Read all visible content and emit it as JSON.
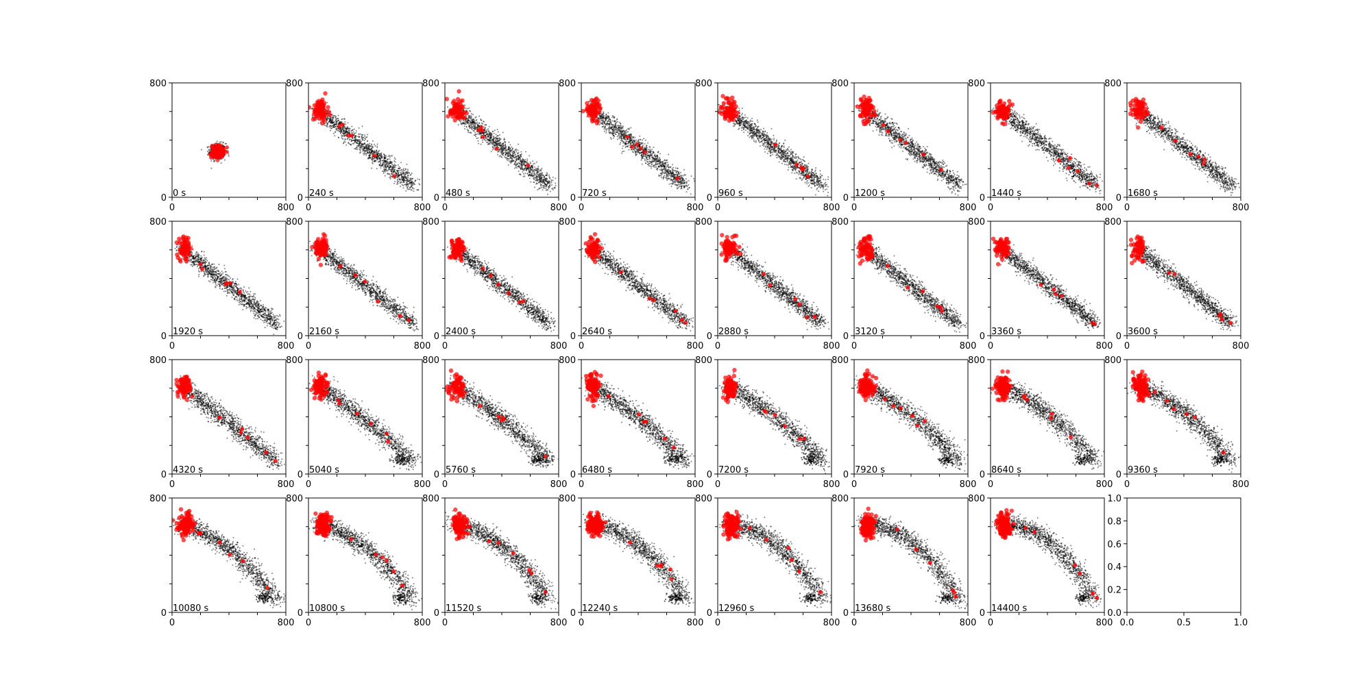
{
  "figure": {
    "background": "#ffffff",
    "rows": 4,
    "cols": 8,
    "point_colors": {
      "bulk": "#000000",
      "highlight": "#ff0000"
    }
  },
  "chart_data": [
    {
      "type": "scatter",
      "time_label": "0 s",
      "phase": 0,
      "xlim": [
        0,
        800
      ],
      "ylim": [
        0,
        800
      ],
      "xticks": [
        "0",
        "800"
      ],
      "yticks": [
        "0",
        "800"
      ],
      "series": [
        {
          "color": "#000000",
          "shape": "cluster",
          "center": [
            320,
            320
          ]
        },
        {
          "color": "#ff0000",
          "shape": "cluster",
          "center": [
            320,
            320
          ]
        }
      ]
    },
    {
      "type": "scatter",
      "time_label": "240 s",
      "phase": 1,
      "xlim": [
        0,
        800
      ],
      "ylim": [
        0,
        800
      ],
      "xticks": [
        "0",
        "800"
      ],
      "yticks": [
        "0",
        "800"
      ]
    },
    {
      "type": "scatter",
      "time_label": "480 s",
      "phase": 1,
      "xlim": [
        0,
        800
      ],
      "ylim": [
        0,
        800
      ],
      "xticks": [
        "0",
        "800"
      ],
      "yticks": [
        "0",
        "800"
      ]
    },
    {
      "type": "scatter",
      "time_label": "720 s",
      "phase": 1,
      "xlim": [
        0,
        800
      ],
      "ylim": [
        0,
        800
      ],
      "xticks": [
        "0",
        "800"
      ],
      "yticks": [
        "0",
        "800"
      ]
    },
    {
      "type": "scatter",
      "time_label": "960 s",
      "phase": 1,
      "xlim": [
        0,
        800
      ],
      "ylim": [
        0,
        800
      ],
      "xticks": [
        "0",
        "800"
      ],
      "yticks": [
        "0",
        "800"
      ]
    },
    {
      "type": "scatter",
      "time_label": "1200 s",
      "phase": 1,
      "xlim": [
        0,
        800
      ],
      "ylim": [
        0,
        800
      ],
      "xticks": [
        "0",
        "800"
      ],
      "yticks": [
        "0",
        "800"
      ]
    },
    {
      "type": "scatter",
      "time_label": "1440 s",
      "phase": 1,
      "xlim": [
        0,
        800
      ],
      "ylim": [
        0,
        800
      ],
      "xticks": [
        "0",
        "800"
      ],
      "yticks": [
        "0",
        "800"
      ]
    },
    {
      "type": "scatter",
      "time_label": "1680 s",
      "phase": 1,
      "xlim": [
        0,
        800
      ],
      "ylim": [
        0,
        800
      ],
      "xticks": [
        "0",
        "800"
      ],
      "yticks": [
        "0",
        "800"
      ]
    },
    {
      "type": "scatter",
      "time_label": "1920 s",
      "phase": 1,
      "xlim": [
        0,
        800
      ],
      "ylim": [
        0,
        800
      ],
      "xticks": [
        "0",
        "800"
      ],
      "yticks": [
        "0",
        "800"
      ]
    },
    {
      "type": "scatter",
      "time_label": "2160 s",
      "phase": 1,
      "xlim": [
        0,
        800
      ],
      "ylim": [
        0,
        800
      ],
      "xticks": [
        "0",
        "800"
      ],
      "yticks": [
        "0",
        "800"
      ]
    },
    {
      "type": "scatter",
      "time_label": "2400 s",
      "phase": 1,
      "xlim": [
        0,
        800
      ],
      "ylim": [
        0,
        800
      ],
      "xticks": [
        "0",
        "800"
      ],
      "yticks": [
        "0",
        "800"
      ]
    },
    {
      "type": "scatter",
      "time_label": "2640 s",
      "phase": 1,
      "xlim": [
        0,
        800
      ],
      "ylim": [
        0,
        800
      ],
      "xticks": [
        "0",
        "800"
      ],
      "yticks": [
        "0",
        "800"
      ]
    },
    {
      "type": "scatter",
      "time_label": "2880 s",
      "phase": 1,
      "xlim": [
        0,
        800
      ],
      "ylim": [
        0,
        800
      ],
      "xticks": [
        "0",
        "800"
      ],
      "yticks": [
        "0",
        "800"
      ]
    },
    {
      "type": "scatter",
      "time_label": "3120 s",
      "phase": 1,
      "xlim": [
        0,
        800
      ],
      "ylim": [
        0,
        800
      ],
      "xticks": [
        "0",
        "800"
      ],
      "yticks": [
        "0",
        "800"
      ]
    },
    {
      "type": "scatter",
      "time_label": "3360 s",
      "phase": 1,
      "xlim": [
        0,
        800
      ],
      "ylim": [
        0,
        800
      ],
      "xticks": [
        "0",
        "800"
      ],
      "yticks": [
        "0",
        "800"
      ]
    },
    {
      "type": "scatter",
      "time_label": "3600 s",
      "phase": 1,
      "xlim": [
        0,
        800
      ],
      "ylim": [
        0,
        800
      ],
      "xticks": [
        "0",
        "800"
      ],
      "yticks": [
        "0",
        "800"
      ]
    },
    {
      "type": "scatter",
      "time_label": "4320 s",
      "phase": 2,
      "xlim": [
        0,
        800
      ],
      "ylim": [
        0,
        800
      ],
      "xticks": [
        "0",
        "800"
      ],
      "yticks": [
        "0",
        "800"
      ]
    },
    {
      "type": "scatter",
      "time_label": "5040 s",
      "phase": 3,
      "xlim": [
        0,
        800
      ],
      "ylim": [
        0,
        800
      ],
      "xticks": [
        "0",
        "800"
      ],
      "yticks": [
        "0",
        "800"
      ]
    },
    {
      "type": "scatter",
      "time_label": "5760 s",
      "phase": 4,
      "xlim": [
        0,
        800
      ],
      "ylim": [
        0,
        800
      ],
      "xticks": [
        "0",
        "800"
      ],
      "yticks": [
        "0",
        "800"
      ]
    },
    {
      "type": "scatter",
      "time_label": "6480 s",
      "phase": 5,
      "xlim": [
        0,
        800
      ],
      "ylim": [
        0,
        800
      ],
      "xticks": [
        "0",
        "800"
      ],
      "yticks": [
        "0",
        "800"
      ]
    },
    {
      "type": "scatter",
      "time_label": "7200 s",
      "phase": 6,
      "xlim": [
        0,
        800
      ],
      "ylim": [
        0,
        800
      ],
      "xticks": [
        "0",
        "800"
      ],
      "yticks": [
        "0",
        "800"
      ]
    },
    {
      "type": "scatter",
      "time_label": "7920 s",
      "phase": 7,
      "xlim": [
        0,
        800
      ],
      "ylim": [
        0,
        800
      ],
      "xticks": [
        "0",
        "800"
      ],
      "yticks": [
        "0",
        "800"
      ]
    },
    {
      "type": "scatter",
      "time_label": "8640 s",
      "phase": 8,
      "xlim": [
        0,
        800
      ],
      "ylim": [
        0,
        800
      ],
      "xticks": [
        "0",
        "800"
      ],
      "yticks": [
        "0",
        "800"
      ]
    },
    {
      "type": "scatter",
      "time_label": "9360 s",
      "phase": 9,
      "xlim": [
        0,
        800
      ],
      "ylim": [
        0,
        800
      ],
      "xticks": [
        "0",
        "800"
      ],
      "yticks": [
        "0",
        "800"
      ]
    },
    {
      "type": "scatter",
      "time_label": "10080 s",
      "phase": 10,
      "xlim": [
        0,
        800
      ],
      "ylim": [
        0,
        800
      ],
      "xticks": [
        "0",
        "800"
      ],
      "yticks": [
        "0",
        "800"
      ]
    },
    {
      "type": "scatter",
      "time_label": "10800 s",
      "phase": 11,
      "xlim": [
        0,
        800
      ],
      "ylim": [
        0,
        800
      ],
      "xticks": [
        "0",
        "800"
      ],
      "yticks": [
        "0",
        "800"
      ]
    },
    {
      "type": "scatter",
      "time_label": "11520 s",
      "phase": 12,
      "xlim": [
        0,
        800
      ],
      "ylim": [
        0,
        800
      ],
      "xticks": [
        "0",
        "800"
      ],
      "yticks": [
        "0",
        "800"
      ]
    },
    {
      "type": "scatter",
      "time_label": "12240 s",
      "phase": 13,
      "xlim": [
        0,
        800
      ],
      "ylim": [
        0,
        800
      ],
      "xticks": [
        "0",
        "800"
      ],
      "yticks": [
        "0",
        "800"
      ]
    },
    {
      "type": "scatter",
      "time_label": "12960 s",
      "phase": 14,
      "xlim": [
        0,
        800
      ],
      "ylim": [
        0,
        800
      ],
      "xticks": [
        "0",
        "800"
      ],
      "yticks": [
        "0",
        "800"
      ]
    },
    {
      "type": "scatter",
      "time_label": "13680 s",
      "phase": 15,
      "xlim": [
        0,
        800
      ],
      "ylim": [
        0,
        800
      ],
      "xticks": [
        "0",
        "800"
      ],
      "yticks": [
        "0",
        "800"
      ]
    },
    {
      "type": "scatter",
      "time_label": "14400 s",
      "phase": 16,
      "xlim": [
        0,
        800
      ],
      "ylim": [
        0,
        800
      ],
      "xticks": [
        "0",
        "800"
      ],
      "yticks": [
        "0",
        "800"
      ]
    },
    {
      "type": "empty",
      "xlim": [
        0,
        1
      ],
      "ylim": [
        0,
        1
      ],
      "xticks": [
        "0.0",
        "0.5",
        "1.0"
      ],
      "yticks": [
        "0.0",
        "0.2",
        "0.4",
        "0.6",
        "0.8",
        "1.0"
      ]
    }
  ]
}
